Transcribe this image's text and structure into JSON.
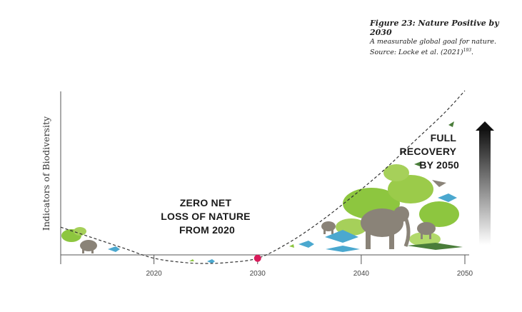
{
  "caption": {
    "title": "Figure 23: Nature Positive by 2030",
    "subtitle": "A measurable global goal for nature. Source: Locke et al. (2021)",
    "ref": "193"
  },
  "chart_data": {
    "type": "line",
    "title": "",
    "xlabel": "",
    "ylabel": "Indicators of Biodiversity",
    "x_ticks": [
      "2020",
      "2030",
      "2040",
      "2050"
    ],
    "xlim": [
      2011,
      2050
    ],
    "grid": false,
    "series": [
      {
        "style": "dashed",
        "x": [
          2011,
          2014,
          2017,
          2020,
          2023,
          2025,
          2027,
          2030,
          2033,
          2036,
          2039,
          2042,
          2045,
          2048,
          2050
        ],
        "y": [
          0.21,
          0.15,
          0.09,
          0.03,
          0.005,
          0.0,
          0.005,
          0.03,
          0.12,
          0.24,
          0.38,
          0.53,
          0.7,
          0.87,
          1.0
        ]
      }
    ],
    "marker": {
      "x": 2030,
      "y": 0.03,
      "color": "#d81b5a"
    },
    "annotations": [
      {
        "lines": [
          "ZERO NET",
          "LOSS OF NATURE",
          "FROM 2020"
        ]
      },
      {
        "lines": [
          "FULL",
          "RECOVERY",
          "BY 2050"
        ]
      }
    ],
    "colors": {
      "curve": "#333333",
      "axis": "#555555",
      "foliage": "#8dc63f",
      "animal": "#8a8378",
      "water": "#4ba8cf"
    }
  }
}
